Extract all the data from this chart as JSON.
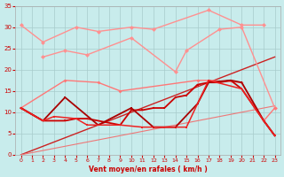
{
  "background_color": "#C8ECEC",
  "grid_color": "#A8CCCC",
  "xlabel": "Vent moyen/en rafales ( km/h )",
  "tick_color": "#CC0000",
  "label_color": "#CC0000",
  "xlim": [
    -0.5,
    23.5
  ],
  "ylim": [
    0,
    35
  ],
  "yticks": [
    0,
    5,
    10,
    15,
    20,
    25,
    30,
    35
  ],
  "xticks": [
    0,
    1,
    2,
    3,
    4,
    5,
    6,
    7,
    8,
    9,
    10,
    11,
    12,
    13,
    14,
    15,
    16,
    17,
    18,
    19,
    20,
    21,
    22,
    23
  ],
  "line_top1": {
    "x": [
      0,
      2,
      5,
      7,
      10,
      12,
      17,
      20,
      22
    ],
    "y": [
      30.5,
      26.5,
      30.0,
      29.0,
      30.0,
      29.5,
      34.0,
      30.5,
      30.5
    ],
    "color": "#FF9090",
    "lw": 1.0,
    "marker": "D",
    "ms": 2.5
  },
  "line_top2": {
    "x": [
      2,
      4,
      6,
      10,
      14,
      15,
      18,
      20,
      23
    ],
    "y": [
      23.0,
      24.5,
      23.5,
      27.5,
      19.5,
      24.5,
      29.5,
      30.0,
      11.0
    ],
    "color": "#FF9090",
    "lw": 1.0,
    "marker": "D",
    "ms": 2.5
  },
  "line_diag1": {
    "x": [
      0,
      23
    ],
    "y": [
      0,
      23
    ],
    "color": "#CC2222",
    "lw": 1.0
  },
  "line_diag2": {
    "x": [
      0,
      23
    ],
    "y": [
      0,
      11.5
    ],
    "color": "#EE7777",
    "lw": 0.8
  },
  "line_mid1": {
    "x": [
      0,
      4,
      7,
      9,
      16,
      17,
      20,
      22,
      23
    ],
    "y": [
      11.0,
      17.5,
      17.0,
      15.0,
      17.5,
      17.5,
      17.0,
      8.0,
      11.0
    ],
    "color": "#FF7777",
    "lw": 1.0,
    "marker": "D",
    "ms": 2.0
  },
  "line_red1": {
    "x": [
      0,
      2,
      4,
      5,
      6,
      9,
      10,
      11,
      12,
      13,
      14,
      15,
      16,
      17,
      18,
      19,
      20,
      22,
      23
    ],
    "y": [
      11.0,
      8.0,
      8.0,
      8.5,
      8.5,
      7.0,
      10.5,
      10.5,
      11.0,
      11.0,
      13.5,
      14.0,
      16.5,
      17.0,
      17.0,
      17.5,
      15.5,
      8.0,
      4.5
    ],
    "color": "#CC0000",
    "lw": 1.3,
    "marker": "s",
    "ms": 2.0
  },
  "line_red2": {
    "x": [
      0,
      2,
      4,
      7,
      10,
      12,
      14,
      16,
      17,
      19,
      20,
      22,
      23
    ],
    "y": [
      11.0,
      8.0,
      13.5,
      7.0,
      11.0,
      6.5,
      6.5,
      12.0,
      17.0,
      17.5,
      17.0,
      8.0,
      4.5
    ],
    "color": "#AA0000",
    "lw": 1.3,
    "marker": "s",
    "ms": 2.0
  },
  "line_red3": {
    "x": [
      0,
      2,
      3,
      5,
      6,
      9,
      11,
      13,
      15,
      17,
      20,
      22,
      23
    ],
    "y": [
      11.0,
      8.0,
      9.0,
      8.5,
      7.0,
      7.0,
      6.5,
      6.5,
      6.5,
      17.5,
      15.5,
      8.0,
      4.5
    ],
    "color": "#EE2222",
    "lw": 1.1,
    "marker": "s",
    "ms": 2.0
  }
}
